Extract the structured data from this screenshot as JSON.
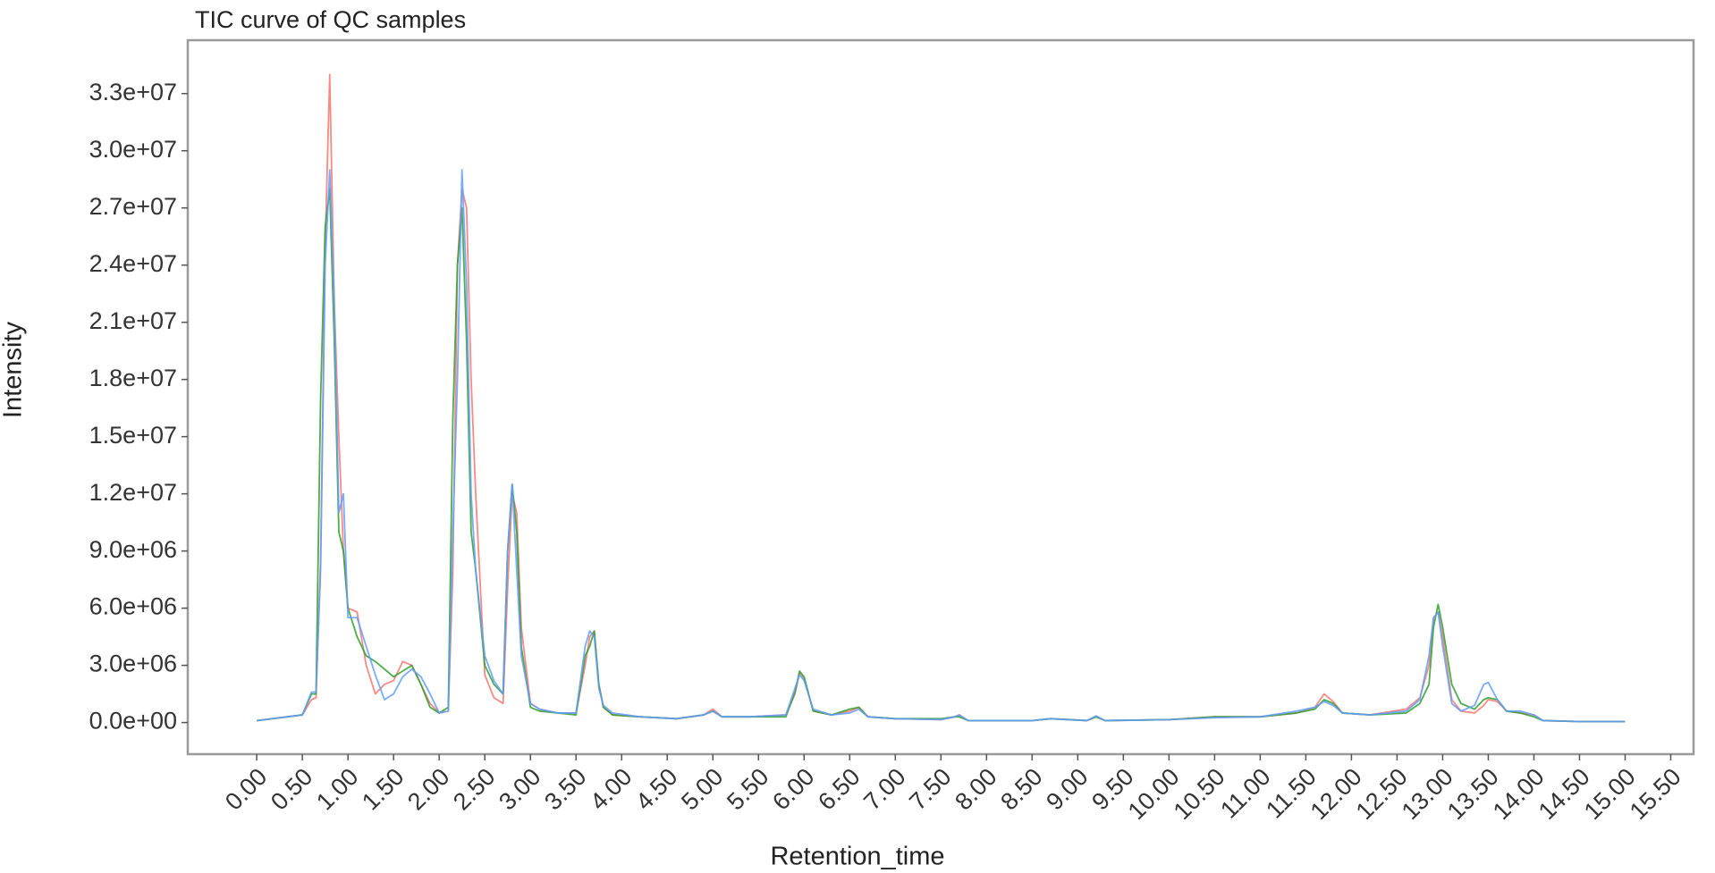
{
  "chart_data": {
    "type": "line",
    "title": "TIC curve of QC samples",
    "xlabel": "Retention_time",
    "ylabel": "Intensity",
    "xlim": [
      -0.756,
      15.75
    ],
    "ylim": [
      -1660000,
      35800000
    ],
    "xticks": [
      {
        "value": 0,
        "label": "0.00"
      },
      {
        "value": 0.5,
        "label": "0.50"
      },
      {
        "value": 1,
        "label": "1.00"
      },
      {
        "value": 1.5,
        "label": "1.50"
      },
      {
        "value": 2,
        "label": "2.00"
      },
      {
        "value": 2.5,
        "label": "2.50"
      },
      {
        "value": 3,
        "label": "3.00"
      },
      {
        "value": 3.5,
        "label": "3.50"
      },
      {
        "value": 4,
        "label": "4.00"
      },
      {
        "value": 4.5,
        "label": "4.50"
      },
      {
        "value": 5,
        "label": "5.00"
      },
      {
        "value": 5.5,
        "label": "5.50"
      },
      {
        "value": 6,
        "label": "6.00"
      },
      {
        "value": 6.5,
        "label": "6.50"
      },
      {
        "value": 7,
        "label": "7.00"
      },
      {
        "value": 7.5,
        "label": "7.50"
      },
      {
        "value": 8,
        "label": "8.00"
      },
      {
        "value": 8.5,
        "label": "8.50"
      },
      {
        "value": 9,
        "label": "9.00"
      },
      {
        "value": 9.5,
        "label": "9.50"
      },
      {
        "value": 10,
        "label": "10.00"
      },
      {
        "value": 10.5,
        "label": "10.50"
      },
      {
        "value": 11,
        "label": "11.00"
      },
      {
        "value": 11.5,
        "label": "11.50"
      },
      {
        "value": 12,
        "label": "12.00"
      },
      {
        "value": 12.5,
        "label": "12.50"
      },
      {
        "value": 13,
        "label": "13.00"
      },
      {
        "value": 13.5,
        "label": "13.50"
      },
      {
        "value": 14,
        "label": "14.00"
      },
      {
        "value": 14.5,
        "label": "14.50"
      },
      {
        "value": 15,
        "label": "15.00"
      },
      {
        "value": 15.5,
        "label": "15.50"
      }
    ],
    "yticks": [
      {
        "value": 0,
        "label": "0.0e+00"
      },
      {
        "value": 3000000,
        "label": "3.0e+06"
      },
      {
        "value": 6000000,
        "label": "6.0e+06"
      },
      {
        "value": 9000000,
        "label": "9.0e+06"
      },
      {
        "value": 12000000,
        "label": "1.2e+07"
      },
      {
        "value": 15000000,
        "label": "1.5e+07"
      },
      {
        "value": 18000000,
        "label": "1.8e+07"
      },
      {
        "value": 21000000,
        "label": "2.1e+07"
      },
      {
        "value": 24000000,
        "label": "2.4e+07"
      },
      {
        "value": 27000000,
        "label": "2.7e+07"
      },
      {
        "value": 30000000,
        "label": "3.0e+07"
      },
      {
        "value": 33000000,
        "label": "3.3e+07"
      }
    ],
    "x": [
      0,
      0.5,
      0.6,
      0.65,
      0.7,
      0.75,
      0.8,
      0.85,
      0.9,
      0.95,
      1.0,
      1.1,
      1.2,
      1.3,
      1.4,
      1.5,
      1.6,
      1.7,
      1.8,
      1.9,
      2.0,
      2.1,
      2.15,
      2.2,
      2.25,
      2.3,
      2.35,
      2.4,
      2.5,
      2.6,
      2.7,
      2.75,
      2.8,
      2.85,
      2.9,
      3.0,
      3.1,
      3.3,
      3.5,
      3.6,
      3.65,
      3.7,
      3.75,
      3.8,
      3.9,
      4.2,
      4.6,
      4.9,
      5.0,
      5.1,
      5.4,
      5.8,
      5.9,
      5.95,
      6.0,
      6.1,
      6.3,
      6.5,
      6.6,
      6.7,
      7.0,
      7.5,
      7.65,
      7.7,
      7.8,
      8.5,
      8.7,
      9.1,
      9.2,
      9.3,
      10.0,
      10.5,
      11.0,
      11.4,
      11.6,
      11.7,
      11.8,
      11.9,
      12.2,
      12.6,
      12.75,
      12.85,
      12.9,
      12.95,
      13.0,
      13.1,
      13.2,
      13.35,
      13.45,
      13.5,
      13.6,
      13.7,
      13.85,
      14.0,
      14.1,
      14.5,
      15.0
    ],
    "series": [
      {
        "color": "#f8766d",
        "values": [
          100000.0,
          400000.0,
          1200000.0,
          1300000.0,
          8500000.0,
          25000000.0,
          34000000.0,
          22000000.0,
          15000000.0,
          9000000.0,
          6000000.0,
          5800000.0,
          3000000.0,
          1500000.0,
          2000000.0,
          2200000.0,
          3200000.0,
          3000000.0,
          2000000.0,
          1000000.0,
          500000.0,
          600000.0,
          8000000.0,
          24000000.0,
          28000000.0,
          27000000.0,
          18000000.0,
          12000000.0,
          2500000.0,
          1300000.0,
          1000000.0,
          7000000.0,
          12000000.0,
          11000000.0,
          5000000.0,
          1000000.0,
          700000.0,
          500000.0,
          500000.0,
          3000000.0,
          4500000.0,
          4800000.0,
          2000000.0,
          800000.0,
          400000.0,
          300000.0,
          200000.0,
          400000.0,
          700000.0,
          300000.0,
          300000.0,
          400000.0,
          1500000.0,
          2600000.0,
          2300000.0,
          600000.0,
          400000.0,
          600000.0,
          800000.0,
          300000.0,
          200000.0,
          150000.0,
          300000.0,
          400000.0,
          100000.0,
          100000.0,
          200000.0,
          100000.0,
          300000.0,
          100000.0,
          150000.0,
          300000.0,
          300000.0,
          500000.0,
          800000.0,
          1500000.0,
          1100000.0,
          500000.0,
          400000.0,
          700000.0,
          1300000.0,
          3000000.0,
          5500000.0,
          5800000.0,
          4500000.0,
          1200000.0,
          600000.0,
          500000.0,
          900000.0,
          1200000.0,
          1100000.0,
          600000.0,
          500000.0,
          400000.0,
          100000.0,
          50000.0,
          50000.0
        ]
      },
      {
        "color": "#2ca02c",
        "values": [
          100000.0,
          400000.0,
          1500000.0,
          1500000.0,
          17000000.0,
          26000000.0,
          28000000.0,
          20000000.0,
          10000000.0,
          9000000.0,
          6000000.0,
          4500000.0,
          3500000.0,
          3200000.0,
          2800000.0,
          2400000.0,
          2700000.0,
          3000000.0,
          2000000.0,
          800000.0,
          500000.0,
          800000.0,
          16000000.0,
          24000000.0,
          27000000.0,
          20000000.0,
          10000000.0,
          8000000.0,
          3000000.0,
          2000000.0,
          1500000.0,
          9000000.0,
          12500000.0,
          10000000.0,
          4000000.0,
          800000.0,
          600000.0,
          500000.0,
          400000.0,
          3500000.0,
          4000000.0,
          4800000.0,
          2000000.0,
          800000.0,
          400000.0,
          300000.0,
          200000.0,
          400000.0,
          600000.0,
          300000.0,
          300000.0,
          300000.0,
          1600000.0,
          2700000.0,
          2400000.0,
          600000.0,
          400000.0,
          700000.0,
          800000.0,
          300000.0,
          200000.0,
          200000.0,
          300000.0,
          300000.0,
          100000.0,
          100000.0,
          200000.0,
          100000.0,
          300000.0,
          100000.0,
          150000.0,
          300000.0,
          300000.0,
          500000.0,
          700000.0,
          1200000.0,
          1000000.0,
          500000.0,
          400000.0,
          500000.0,
          1000000.0,
          2000000.0,
          5000000.0,
          6200000.0,
          5000000.0,
          2000000.0,
          1000000.0,
          700000.0,
          1200000.0,
          1300000.0,
          1200000.0,
          600000.0,
          500000.0,
          300000.0,
          100000.0,
          50000.0,
          50000.0
        ]
      },
      {
        "color": "#619cff",
        "values": [
          100000.0,
          400000.0,
          1600000.0,
          1600000.0,
          8000000.0,
          24000000.0,
          29000000.0,
          22000000.0,
          11000000.0,
          12000000.0,
          5500000.0,
          5500000.0,
          4000000.0,
          2500000.0,
          1200000.0,
          1500000.0,
          2400000.0,
          2800000.0,
          2400000.0,
          1500000.0,
          500000.0,
          600000.0,
          10000000.0,
          18000000.0,
          29000000.0,
          23000000.0,
          12000000.0,
          8000000.0,
          3500000.0,
          2200000.0,
          1500000.0,
          9000000.0,
          12500000.0,
          8000000.0,
          3500000.0,
          1000000.0,
          700000.0,
          500000.0,
          500000.0,
          4000000.0,
          4800000.0,
          4500000.0,
          1800000.0,
          900000.0,
          500000.0,
          300000.0,
          200000.0,
          400000.0,
          600000.0,
          300000.0,
          300000.0,
          400000.0,
          1800000.0,
          2500000.0,
          2200000.0,
          700000.0,
          400000.0,
          500000.0,
          700000.0,
          300000.0,
          200000.0,
          150000.0,
          300000.0,
          400000.0,
          100000.0,
          100000.0,
          200000.0,
          100000.0,
          350000.0,
          100000.0,
          150000.0,
          250000.0,
          300000.0,
          600000.0,
          800000.0,
          1100000.0,
          900000.0,
          500000.0,
          400000.0,
          600000.0,
          1200000.0,
          3500000.0,
          5500000.0,
          5800000.0,
          4000000.0,
          1000000.0,
          600000.0,
          900000.0,
          2000000.0,
          2100000.0,
          1200000.0,
          600000.0,
          600000.0,
          400000.0,
          100000.0,
          50000.0,
          50000.0
        ]
      }
    ]
  }
}
